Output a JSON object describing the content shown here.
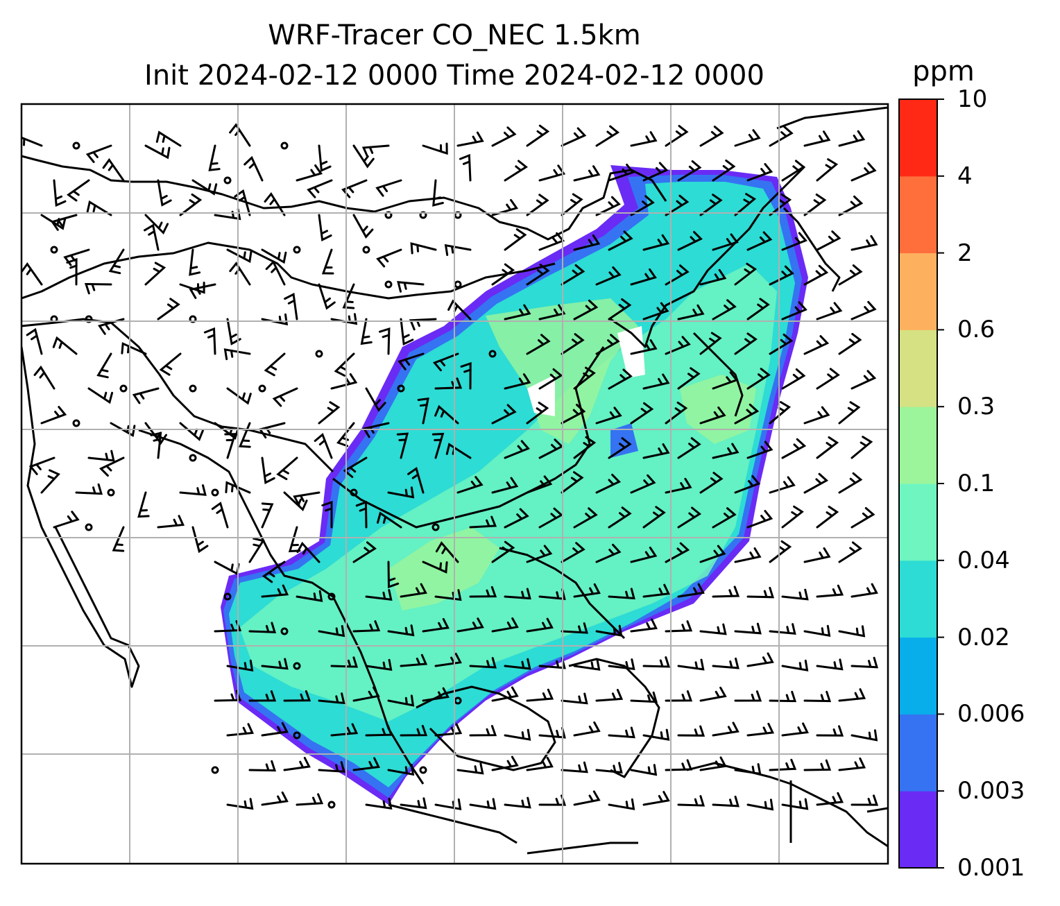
{
  "map": {
    "title_line1": "WRF-Tracer CO_NEC 1.5km",
    "title_line2": "Init 2024-02-12 0000 Time 2024-02-12 0000",
    "field": "CO tracer concentration",
    "overlay": "wind barbs",
    "gridlines": true
  },
  "colorbar": {
    "unit": "ppm",
    "levels": [
      "0.001",
      "0.003",
      "0.006",
      "0.02",
      "0.04",
      "0.1",
      "0.3",
      "0.6",
      "2",
      "4",
      "10"
    ],
    "colors": [
      "#6a2bf5",
      "#3573f2",
      "#08aeea",
      "#2ddcd4",
      "#6ff5c0",
      "#9cf59a",
      "#d5e183",
      "#fdb15f",
      "#fe6f3c",
      "#ff2916"
    ]
  }
}
